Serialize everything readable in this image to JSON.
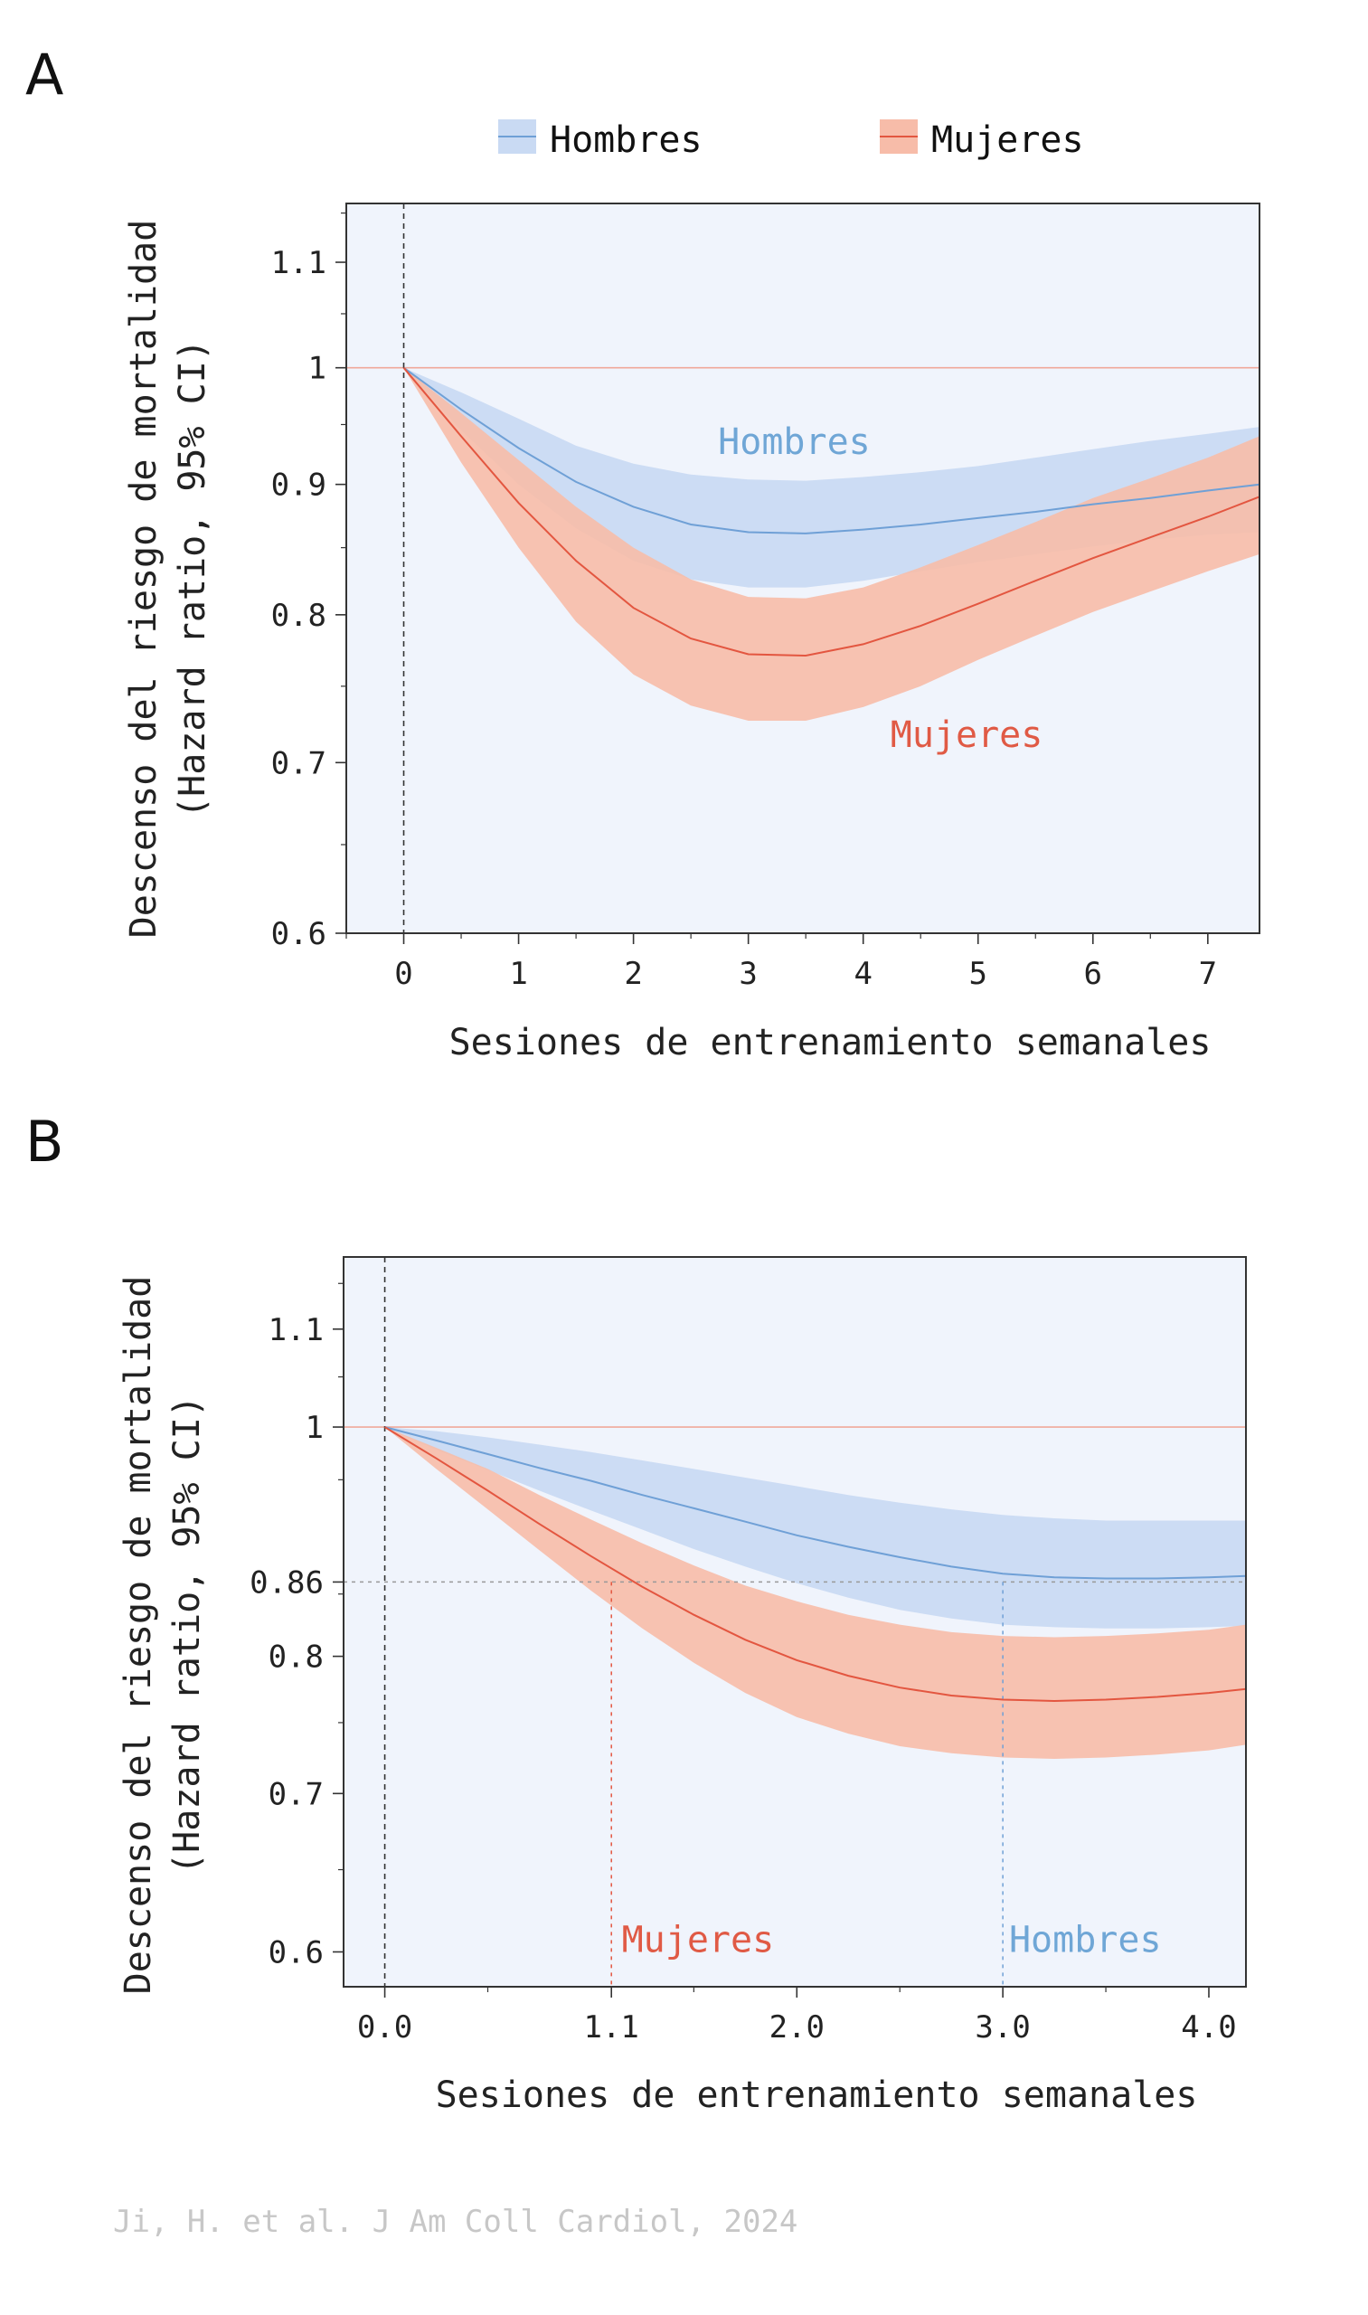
{
  "colors": {
    "men_band": "#c9daf3",
    "men_line": "#6fa0d6",
    "women_band": "#f7bca9",
    "women_line": "#e35640",
    "plot_bg": "#f0f4fc",
    "ref_line": "#f0a89a"
  },
  "legend": {
    "men": "Hombres",
    "women": "Mujeres"
  },
  "source": "Ji, H. et al. J Am Coll Cardiol, 2024",
  "chart_data": [
    {
      "panel": "A",
      "type": "line",
      "ylabel_line1": "Descenso del riesgo de mortalidad",
      "ylabel_line2": "(Hazard ratio, 95% CI)",
      "xlabel": "Sesiones de entrenamiento semanales",
      "xlim": [
        -0.5,
        7.45
      ],
      "ylim": [
        0.6,
        1.16
      ],
      "y_scale": "log",
      "grid": false,
      "legend_position": "top",
      "x_ticks": [
        0,
        1,
        2,
        3,
        4,
        5,
        6,
        7
      ],
      "x_tick_labels": [
        "0",
        "1",
        "2",
        "3",
        "4",
        "5",
        "6",
        "7"
      ],
      "y_ticks": [
        0.6,
        0.7,
        0.8,
        0.9,
        1.0,
        1.1
      ],
      "y_tick_labels": [
        "0.6",
        "0.7",
        "0.8",
        "0.9",
        "1",
        "1.1"
      ],
      "reference_hr": 1.0,
      "annotations": [
        {
          "text": "Hombres",
          "series": "men",
          "x": 3.4,
          "y": 0.925
        },
        {
          "text": "Mujeres",
          "series": "women",
          "x": 4.9,
          "y": 0.71
        }
      ],
      "series": [
        {
          "name": "Hombres",
          "key": "men",
          "x": [
            0,
            0.5,
            1,
            1.5,
            2,
            2.5,
            3,
            3.5,
            4,
            4.5,
            5,
            5.5,
            6,
            6.5,
            7,
            7.45
          ],
          "y": [
            1.0,
            0.963,
            0.93,
            0.902,
            0.882,
            0.868,
            0.862,
            0.861,
            0.864,
            0.868,
            0.873,
            0.878,
            0.884,
            0.889,
            0.895,
            0.9
          ],
          "lower": [
            1.0,
            0.945,
            0.9,
            0.865,
            0.84,
            0.826,
            0.82,
            0.82,
            0.825,
            0.832,
            0.839,
            0.845,
            0.851,
            0.856,
            0.86,
            0.862
          ],
          "upper": [
            1.0,
            0.978,
            0.955,
            0.932,
            0.917,
            0.908,
            0.904,
            0.903,
            0.906,
            0.91,
            0.915,
            0.922,
            0.929,
            0.936,
            0.942,
            0.948
          ]
        },
        {
          "name": "Mujeres",
          "key": "women",
          "x": [
            0,
            0.5,
            1,
            1.5,
            2,
            2.5,
            3,
            3.5,
            4,
            4.5,
            5,
            5.5,
            6,
            6.5,
            7,
            7.45
          ],
          "y": [
            1.0,
            0.94,
            0.885,
            0.84,
            0.805,
            0.783,
            0.772,
            0.771,
            0.779,
            0.792,
            0.808,
            0.825,
            0.842,
            0.858,
            0.874,
            0.89
          ],
          "lower": [
            1.0,
            0.918,
            0.85,
            0.795,
            0.758,
            0.737,
            0.727,
            0.727,
            0.736,
            0.75,
            0.768,
            0.785,
            0.802,
            0.817,
            0.832,
            0.845
          ],
          "upper": [
            1.0,
            0.96,
            0.92,
            0.882,
            0.85,
            0.826,
            0.813,
            0.812,
            0.82,
            0.835,
            0.852,
            0.87,
            0.889,
            0.905,
            0.922,
            0.94
          ]
        }
      ]
    },
    {
      "panel": "B",
      "type": "line",
      "ylabel_line1": "Descenso del riesgo de mortalidad",
      "ylabel_line2": "(Hazard ratio, 95% CI)",
      "xlabel": "Sesiones de entrenamiento semanales",
      "xlim": [
        -0.2,
        4.18
      ],
      "ylim": [
        0.58,
        1.18
      ],
      "y_scale": "log",
      "grid": false,
      "x_ticks": [
        0,
        1.1,
        2,
        3,
        4
      ],
      "x_tick_labels": [
        "0.0",
        "1.1",
        "2.0",
        "3.0",
        "4.0"
      ],
      "x_tick_colors": [
        "#222222",
        "#e05a45",
        "#222222",
        "#7aa8d2",
        "#222222"
      ],
      "y_ticks": [
        0.6,
        0.7,
        0.8,
        0.86,
        1.0,
        1.1
      ],
      "y_tick_labels": [
        "0.6",
        "0.7",
        "0.8",
        "0.86",
        "1",
        "1.1"
      ],
      "reference_hr": 1.0,
      "threshold_hr": 0.86,
      "threshold_lines": [
        {
          "series": "women",
          "x": 1.1
        },
        {
          "series": "men",
          "x": 3.0
        }
      ],
      "annotations": [
        {
          "text": "Mujeres",
          "series": "women",
          "x": 1.15,
          "y": 0.6
        },
        {
          "text": "Hombres",
          "series": "men",
          "x": 3.03,
          "y": 0.6
        }
      ],
      "series": [
        {
          "name": "Hombres",
          "key": "men",
          "x": [
            0,
            0.25,
            0.5,
            0.75,
            1,
            1.25,
            1.5,
            1.75,
            2,
            2.25,
            2.5,
            2.75,
            3,
            3.25,
            3.5,
            3.75,
            4,
            4.18
          ],
          "y": [
            1.0,
            0.987,
            0.974,
            0.961,
            0.949,
            0.936,
            0.924,
            0.912,
            0.9,
            0.89,
            0.881,
            0.873,
            0.867,
            0.864,
            0.863,
            0.863,
            0.864,
            0.865
          ],
          "lower": [
            1.0,
            0.978,
            0.959,
            0.94,
            0.922,
            0.905,
            0.888,
            0.873,
            0.859,
            0.847,
            0.837,
            0.83,
            0.825,
            0.823,
            0.822,
            0.822,
            0.823,
            0.824
          ],
          "upper": [
            1.0,
            0.996,
            0.99,
            0.983,
            0.976,
            0.968,
            0.96,
            0.952,
            0.944,
            0.936,
            0.929,
            0.923,
            0.918,
            0.915,
            0.913,
            0.913,
            0.913,
            0.913
          ]
        },
        {
          "name": "Mujeres",
          "key": "women",
          "x": [
            0,
            0.25,
            0.5,
            0.75,
            1,
            1.25,
            1.5,
            1.75,
            2,
            2.25,
            2.5,
            2.75,
            3,
            3.25,
            3.5,
            3.75,
            4,
            4.18
          ],
          "y": [
            1.0,
            0.97,
            0.94,
            0.91,
            0.882,
            0.856,
            0.833,
            0.813,
            0.797,
            0.785,
            0.776,
            0.77,
            0.767,
            0.766,
            0.767,
            0.769,
            0.772,
            0.775
          ],
          "lower": [
            1.0,
            0.96,
            0.923,
            0.887,
            0.853,
            0.822,
            0.795,
            0.772,
            0.754,
            0.742,
            0.733,
            0.728,
            0.725,
            0.724,
            0.725,
            0.727,
            0.73,
            0.734
          ],
          "upper": [
            1.0,
            0.98,
            0.96,
            0.936,
            0.914,
            0.893,
            0.874,
            0.857,
            0.844,
            0.833,
            0.825,
            0.819,
            0.816,
            0.815,
            0.816,
            0.818,
            0.821,
            0.825
          ]
        }
      ]
    }
  ]
}
